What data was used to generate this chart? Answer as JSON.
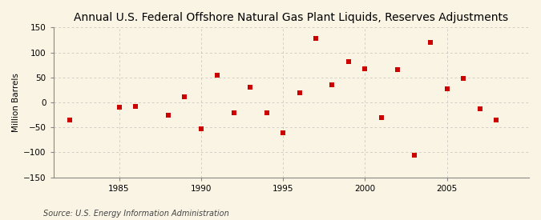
{
  "title": "Annual U.S. Federal Offshore Natural Gas Plant Liquids, Reserves Adjustments",
  "ylabel": "Million Barrels",
  "source": "Source: U.S. Energy Information Administration",
  "years": [
    1982,
    1985,
    1986,
    1988,
    1989,
    1990,
    1991,
    1992,
    1993,
    1994,
    1995,
    1996,
    1997,
    1998,
    1999,
    2000,
    2001,
    2002,
    2003,
    2004,
    2005,
    2006,
    2007,
    2008
  ],
  "values": [
    -35,
    -10,
    -8,
    -25,
    12,
    -52,
    55,
    -20,
    30,
    -20,
    -60,
    20,
    128,
    35,
    82,
    68,
    -30,
    65,
    -105,
    120,
    28,
    48,
    -12,
    -35
  ],
  "marker_color": "#cc0000",
  "marker_size": 25,
  "xlim": [
    1981,
    2010
  ],
  "ylim": [
    -150,
    150
  ],
  "yticks": [
    -150,
    -100,
    -50,
    0,
    50,
    100,
    150
  ],
  "xticks": [
    1985,
    1990,
    1995,
    2000,
    2005
  ],
  "bg_color": "#faf4e4",
  "grid_color": "#aaaaaa",
  "title_fontsize": 10,
  "label_fontsize": 7.5,
  "tick_fontsize": 7.5,
  "source_fontsize": 7
}
